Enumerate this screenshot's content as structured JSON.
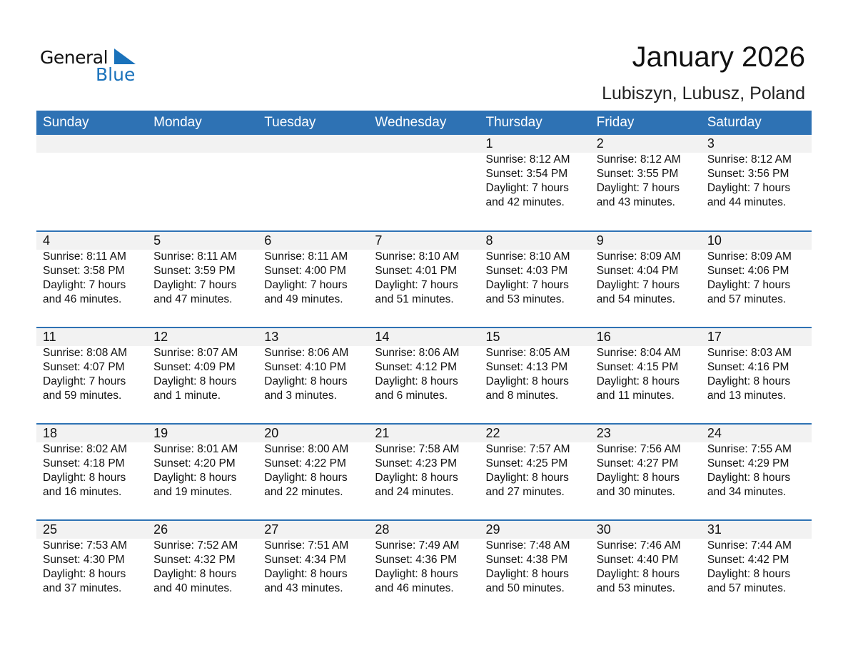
{
  "logo": {
    "text1": "General",
    "text2": "Blue"
  },
  "title": "January 2026",
  "subtitle": "Lubiszyn, Lubusz, Poland",
  "colors": {
    "header": "#2e72b4",
    "band": "#f2f2f2"
  },
  "weekdays": [
    "Sunday",
    "Monday",
    "Tuesday",
    "Wednesday",
    "Thursday",
    "Friday",
    "Saturday"
  ],
  "weeks": [
    [
      null,
      null,
      null,
      null,
      {
        "day": "1",
        "sunrise": "Sunrise: 8:12 AM",
        "sunset": "Sunset: 3:54 PM",
        "daylight": "Daylight: 7 hours",
        "minutes": "and 42 minutes."
      },
      {
        "day": "2",
        "sunrise": "Sunrise: 8:12 AM",
        "sunset": "Sunset: 3:55 PM",
        "daylight": "Daylight: 7 hours",
        "minutes": "and 43 minutes."
      },
      {
        "day": "3",
        "sunrise": "Sunrise: 8:12 AM",
        "sunset": "Sunset: 3:56 PM",
        "daylight": "Daylight: 7 hours",
        "minutes": "and 44 minutes."
      }
    ],
    [
      {
        "day": "4",
        "sunrise": "Sunrise: 8:11 AM",
        "sunset": "Sunset: 3:58 PM",
        "daylight": "Daylight: 7 hours",
        "minutes": "and 46 minutes."
      },
      {
        "day": "5",
        "sunrise": "Sunrise: 8:11 AM",
        "sunset": "Sunset: 3:59 PM",
        "daylight": "Daylight: 7 hours",
        "minutes": "and 47 minutes."
      },
      {
        "day": "6",
        "sunrise": "Sunrise: 8:11 AM",
        "sunset": "Sunset: 4:00 PM",
        "daylight": "Daylight: 7 hours",
        "minutes": "and 49 minutes."
      },
      {
        "day": "7",
        "sunrise": "Sunrise: 8:10 AM",
        "sunset": "Sunset: 4:01 PM",
        "daylight": "Daylight: 7 hours",
        "minutes": "and 51 minutes."
      },
      {
        "day": "8",
        "sunrise": "Sunrise: 8:10 AM",
        "sunset": "Sunset: 4:03 PM",
        "daylight": "Daylight: 7 hours",
        "minutes": "and 53 minutes."
      },
      {
        "day": "9",
        "sunrise": "Sunrise: 8:09 AM",
        "sunset": "Sunset: 4:04 PM",
        "daylight": "Daylight: 7 hours",
        "minutes": "and 54 minutes."
      },
      {
        "day": "10",
        "sunrise": "Sunrise: 8:09 AM",
        "sunset": "Sunset: 4:06 PM",
        "daylight": "Daylight: 7 hours",
        "minutes": "and 57 minutes."
      }
    ],
    [
      {
        "day": "11",
        "sunrise": "Sunrise: 8:08 AM",
        "sunset": "Sunset: 4:07 PM",
        "daylight": "Daylight: 7 hours",
        "minutes": "and 59 minutes."
      },
      {
        "day": "12",
        "sunrise": "Sunrise: 8:07 AM",
        "sunset": "Sunset: 4:09 PM",
        "daylight": "Daylight: 8 hours",
        "minutes": "and 1 minute."
      },
      {
        "day": "13",
        "sunrise": "Sunrise: 8:06 AM",
        "sunset": "Sunset: 4:10 PM",
        "daylight": "Daylight: 8 hours",
        "minutes": "and 3 minutes."
      },
      {
        "day": "14",
        "sunrise": "Sunrise: 8:06 AM",
        "sunset": "Sunset: 4:12 PM",
        "daylight": "Daylight: 8 hours",
        "minutes": "and 6 minutes."
      },
      {
        "day": "15",
        "sunrise": "Sunrise: 8:05 AM",
        "sunset": "Sunset: 4:13 PM",
        "daylight": "Daylight: 8 hours",
        "minutes": "and 8 minutes."
      },
      {
        "day": "16",
        "sunrise": "Sunrise: 8:04 AM",
        "sunset": "Sunset: 4:15 PM",
        "daylight": "Daylight: 8 hours",
        "minutes": "and 11 minutes."
      },
      {
        "day": "17",
        "sunrise": "Sunrise: 8:03 AM",
        "sunset": "Sunset: 4:16 PM",
        "daylight": "Daylight: 8 hours",
        "minutes": "and 13 minutes."
      }
    ],
    [
      {
        "day": "18",
        "sunrise": "Sunrise: 8:02 AM",
        "sunset": "Sunset: 4:18 PM",
        "daylight": "Daylight: 8 hours",
        "minutes": "and 16 minutes."
      },
      {
        "day": "19",
        "sunrise": "Sunrise: 8:01 AM",
        "sunset": "Sunset: 4:20 PM",
        "daylight": "Daylight: 8 hours",
        "minutes": "and 19 minutes."
      },
      {
        "day": "20",
        "sunrise": "Sunrise: 8:00 AM",
        "sunset": "Sunset: 4:22 PM",
        "daylight": "Daylight: 8 hours",
        "minutes": "and 22 minutes."
      },
      {
        "day": "21",
        "sunrise": "Sunrise: 7:58 AM",
        "sunset": "Sunset: 4:23 PM",
        "daylight": "Daylight: 8 hours",
        "minutes": "and 24 minutes."
      },
      {
        "day": "22",
        "sunrise": "Sunrise: 7:57 AM",
        "sunset": "Sunset: 4:25 PM",
        "daylight": "Daylight: 8 hours",
        "minutes": "and 27 minutes."
      },
      {
        "day": "23",
        "sunrise": "Sunrise: 7:56 AM",
        "sunset": "Sunset: 4:27 PM",
        "daylight": "Daylight: 8 hours",
        "minutes": "and 30 minutes."
      },
      {
        "day": "24",
        "sunrise": "Sunrise: 7:55 AM",
        "sunset": "Sunset: 4:29 PM",
        "daylight": "Daylight: 8 hours",
        "minutes": "and 34 minutes."
      }
    ],
    [
      {
        "day": "25",
        "sunrise": "Sunrise: 7:53 AM",
        "sunset": "Sunset: 4:30 PM",
        "daylight": "Daylight: 8 hours",
        "minutes": "and 37 minutes."
      },
      {
        "day": "26",
        "sunrise": "Sunrise: 7:52 AM",
        "sunset": "Sunset: 4:32 PM",
        "daylight": "Daylight: 8 hours",
        "minutes": "and 40 minutes."
      },
      {
        "day": "27",
        "sunrise": "Sunrise: 7:51 AM",
        "sunset": "Sunset: 4:34 PM",
        "daylight": "Daylight: 8 hours",
        "minutes": "and 43 minutes."
      },
      {
        "day": "28",
        "sunrise": "Sunrise: 7:49 AM",
        "sunset": "Sunset: 4:36 PM",
        "daylight": "Daylight: 8 hours",
        "minutes": "and 46 minutes."
      },
      {
        "day": "29",
        "sunrise": "Sunrise: 7:48 AM",
        "sunset": "Sunset: 4:38 PM",
        "daylight": "Daylight: 8 hours",
        "minutes": "and 50 minutes."
      },
      {
        "day": "30",
        "sunrise": "Sunrise: 7:46 AM",
        "sunset": "Sunset: 4:40 PM",
        "daylight": "Daylight: 8 hours",
        "minutes": "and 53 minutes."
      },
      {
        "day": "31",
        "sunrise": "Sunrise: 7:44 AM",
        "sunset": "Sunset: 4:42 PM",
        "daylight": "Daylight: 8 hours",
        "minutes": "and 57 minutes."
      }
    ]
  ]
}
